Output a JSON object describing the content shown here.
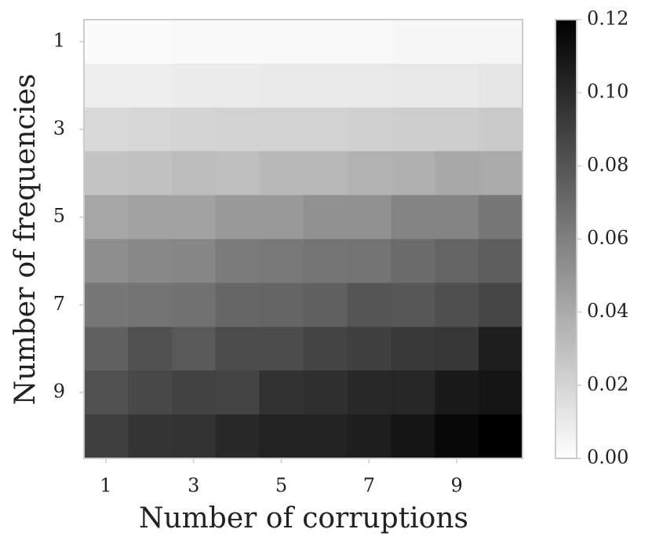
{
  "chart_data": {
    "type": "heatmap",
    "xlabel": "Number of corruptions",
    "ylabel": "Number of frequencies",
    "x": [
      1,
      2,
      3,
      4,
      5,
      6,
      7,
      8,
      9,
      10
    ],
    "y": [
      1,
      2,
      3,
      4,
      5,
      6,
      7,
      8,
      9,
      10
    ],
    "xlim": [
      0.5,
      10.5
    ],
    "ylim": [
      0.5,
      10.5
    ],
    "y_inverted": true,
    "xticks": [
      1,
      3,
      5,
      7,
      9
    ],
    "yticks": [
      1,
      3,
      5,
      7,
      9
    ],
    "cmap": "Greys",
    "clim": [
      0,
      0.12
    ],
    "cticks": [
      {
        "value": 0,
        "label": "0.00"
      },
      0.02,
      0.04,
      0.06,
      0.08,
      {
        "value": 0.1,
        "label": "0.10"
      },
      0.12
    ],
    "values": [
      [
        0.002,
        0.002,
        0.003,
        0.003,
        0.003,
        0.003,
        0.003,
        0.004,
        0.004,
        0.004
      ],
      [
        0.008,
        0.008,
        0.009,
        0.009,
        0.01,
        0.01,
        0.01,
        0.011,
        0.011,
        0.012
      ],
      [
        0.018,
        0.019,
        0.02,
        0.021,
        0.021,
        0.021,
        0.022,
        0.023,
        0.023,
        0.025
      ],
      [
        0.028,
        0.029,
        0.031,
        0.03,
        0.033,
        0.033,
        0.036,
        0.037,
        0.041,
        0.04
      ],
      [
        0.042,
        0.044,
        0.044,
        0.048,
        0.048,
        0.052,
        0.052,
        0.058,
        0.058,
        0.064
      ],
      [
        0.053,
        0.056,
        0.057,
        0.062,
        0.063,
        0.065,
        0.066,
        0.069,
        0.073,
        0.076
      ],
      [
        0.064,
        0.066,
        0.067,
        0.072,
        0.073,
        0.075,
        0.08,
        0.079,
        0.083,
        0.087
      ],
      [
        0.075,
        0.082,
        0.078,
        0.084,
        0.084,
        0.088,
        0.09,
        0.093,
        0.094,
        0.106
      ],
      [
        0.082,
        0.086,
        0.089,
        0.088,
        0.097,
        0.098,
        0.101,
        0.102,
        0.108,
        0.11
      ],
      [
        0.09,
        0.095,
        0.096,
        0.101,
        0.104,
        0.104,
        0.106,
        0.11,
        0.116,
        0.12
      ]
    ]
  }
}
